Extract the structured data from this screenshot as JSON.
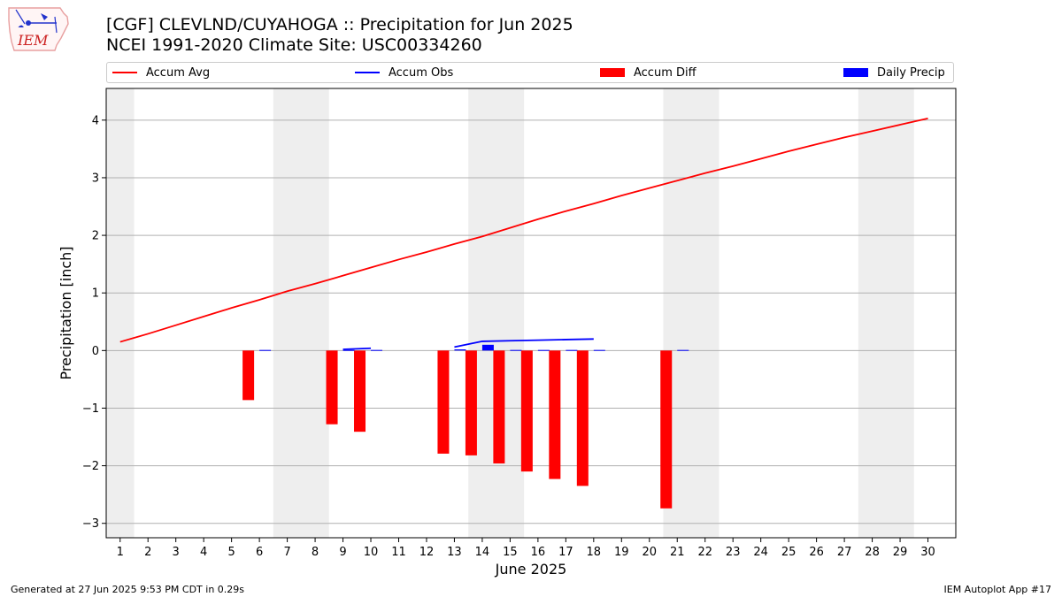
{
  "header": {
    "title_line1": "[CGF] CLEVLND/CUYAHOGA :: Precipitation for Jun 2025",
    "title_line2": "NCEI 1991-2020 Climate Site: USC00334260",
    "logo_text": "IEM"
  },
  "legend": {
    "items": [
      {
        "label": "Accum Avg",
        "kind": "line",
        "color": "#ff0000"
      },
      {
        "label": "Accum Obs",
        "kind": "line",
        "color": "#0000ff"
      },
      {
        "label": "Accum Diff",
        "kind": "box",
        "color": "#ff0000"
      },
      {
        "label": "Daily Precip",
        "kind": "box",
        "color": "#0000ff"
      }
    ]
  },
  "footer": {
    "left": "Generated at 27 Jun 2025 9:53 PM CDT in 0.29s",
    "right": "IEM Autoplot App #17"
  },
  "colors": {
    "avg": "#ff0000",
    "obs": "#0000ff",
    "diff": "#ff0000",
    "daily": "#0000ff",
    "weekend": "#eeeeee",
    "grid": "#b0b0b0"
  },
  "chart_data": {
    "type": "bar",
    "title": "[CGF] CLEVLND/CUYAHOGA :: Precipitation for Jun 2025",
    "subtitle": "NCEI 1991-2020 Climate Site: USC00334260",
    "xlabel": "June 2025",
    "ylabel": "Precipitation [inch]",
    "xlim": [
      0.5,
      31.0
    ],
    "ylim": [
      -3.25,
      4.55
    ],
    "grid": true,
    "legend_position": "top",
    "x_ticks": [
      1,
      2,
      3,
      4,
      5,
      6,
      7,
      8,
      9,
      10,
      11,
      12,
      13,
      14,
      15,
      16,
      17,
      18,
      19,
      20,
      21,
      22,
      23,
      24,
      25,
      26,
      27,
      28,
      29,
      30
    ],
    "y_ticks": [
      -3,
      -2,
      -1,
      0,
      1,
      2,
      3,
      4
    ],
    "y_tick_labels": [
      "−3",
      "−2",
      "−1",
      "0",
      "1",
      "2",
      "3",
      "4"
    ],
    "weekend_spans": [
      [
        0.5,
        1.5
      ],
      [
        6.5,
        8.5
      ],
      [
        13.5,
        15.5
      ],
      [
        20.5,
        22.5
      ],
      [
        27.5,
        29.5
      ]
    ],
    "series": [
      {
        "name": "Accum Avg",
        "type": "line",
        "x": [
          1,
          2,
          3,
          4,
          5,
          6,
          7,
          8,
          9,
          10,
          11,
          12,
          13,
          14,
          15,
          16,
          17,
          18,
          19,
          20,
          21,
          22,
          23,
          24,
          25,
          26,
          27,
          28,
          29,
          30
        ],
        "values": [
          0.15,
          0.29,
          0.44,
          0.59,
          0.74,
          0.88,
          1.03,
          1.16,
          1.3,
          1.44,
          1.58,
          1.71,
          1.85,
          1.98,
          2.13,
          2.28,
          2.42,
          2.55,
          2.69,
          2.82,
          2.95,
          3.08,
          3.2,
          3.33,
          3.46,
          3.58,
          3.7,
          3.81,
          3.92,
          4.03
        ]
      },
      {
        "name": "Accum Obs",
        "type": "line",
        "segments": [
          {
            "x": [
              9,
              10
            ],
            "values": [
              0.02,
              0.04
            ]
          },
          {
            "x": [
              13,
              14,
              15,
              16,
              17,
              18
            ],
            "values": [
              0.06,
              0.16,
              0.17,
              0.18,
              0.19,
              0.2
            ]
          }
        ]
      },
      {
        "name": "Accum Diff",
        "type": "bar",
        "x": [
          6,
          9,
          10,
          13,
          14,
          15,
          16,
          17,
          18,
          21
        ],
        "values": [
          -0.86,
          -1.28,
          -1.41,
          -1.79,
          -1.82,
          -1.96,
          -2.1,
          -2.23,
          -2.35,
          -2.74
        ]
      },
      {
        "name": "Daily Precip",
        "type": "bar",
        "x": [
          6,
          9,
          10,
          13,
          14,
          15,
          16,
          17,
          18,
          21
        ],
        "values": [
          0.01,
          0.01,
          0.01,
          0.02,
          0.1,
          0.01,
          0.01,
          0.01,
          0.01,
          0.01
        ]
      }
    ]
  }
}
